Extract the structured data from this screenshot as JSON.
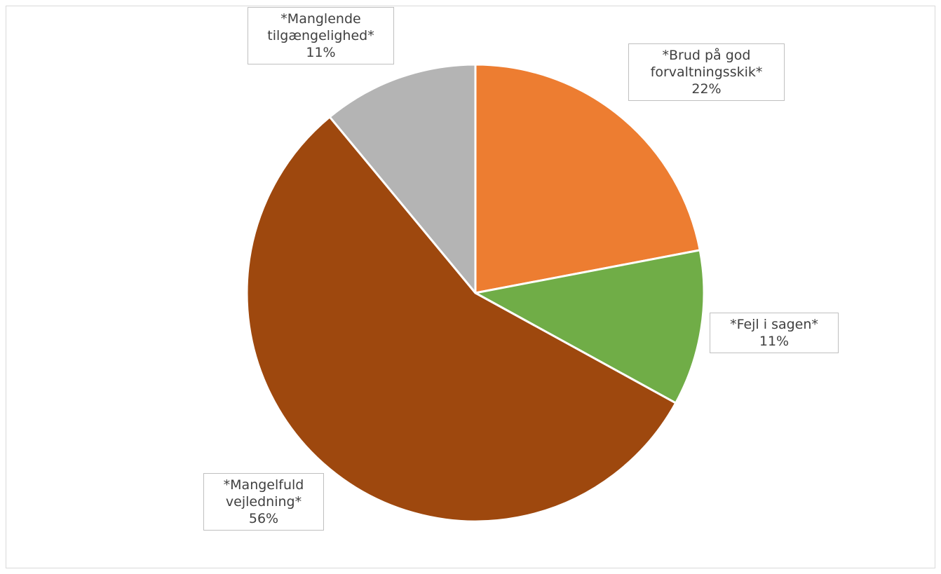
{
  "chart_data": {
    "type": "pie",
    "title": "",
    "slices": [
      {
        "label_lines": [
          "*Brud på god",
          "forvaltningsskik*"
        ],
        "percent_label": "22%",
        "value": 22,
        "color": "#ED7D31"
      },
      {
        "label_lines": [
          "*Fejl i sagen*"
        ],
        "percent_label": "11%",
        "value": 11,
        "color": "#70AD47"
      },
      {
        "label_lines": [
          "*Mangelfuld",
          "vejledning*"
        ],
        "percent_label": "56%",
        "value": 56,
        "color": "#9E480E"
      },
      {
        "label_lines": [
          "*Manglende",
          "tilgængelighed*"
        ],
        "percent_label": "11%",
        "value": 11,
        "color": "#B4B4B4"
      }
    ],
    "legend": "none",
    "start_angle_deg": 0,
    "direction": "clockwise"
  }
}
